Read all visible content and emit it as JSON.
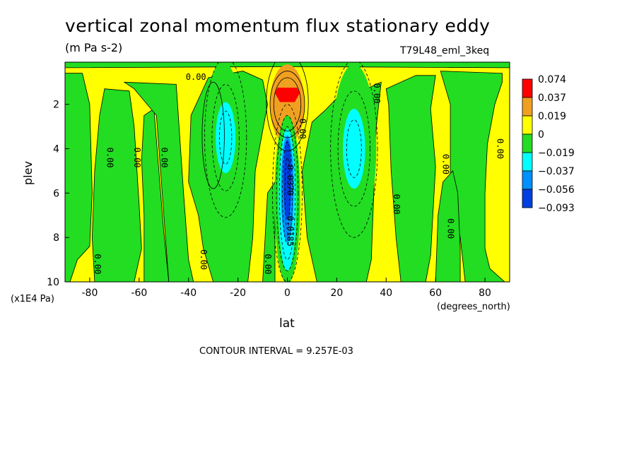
{
  "title": "vertical zonal momentum flux stationary eddy",
  "units": "(m Pa s-2)",
  "run_label": "T79L48_eml_3keq",
  "contour_interval_text": "CONTOUR INTERVAL = 9.257E-03",
  "chart_data": {
    "type": "heatmap",
    "title": "vertical zonal momentum flux stationary eddy",
    "subtitle": "(m Pa s-2)",
    "xlabel": "lat",
    "xunits": "(degrees_north)",
    "ylabel": "plev",
    "ymultiplier": "(x1E4 Pa)",
    "xlim": [
      -90,
      90
    ],
    "ylim": [
      10,
      0.1
    ],
    "x_ticks": [
      -80,
      -60,
      -40,
      -20,
      0,
      20,
      40,
      60,
      80
    ],
    "y_ticks": [
      2,
      4,
      6,
      8,
      10
    ],
    "colors": {
      "red": "#ff0000",
      "orange": "#f0a020",
      "yellow": "#ffff00",
      "green": "#22dd22",
      "cyan": "#00ffff",
      "lightblue": "#0090ff",
      "blue": "#0040e0"
    },
    "legend": {
      "placement": "right",
      "boundaries": [
        "0.074",
        "0.037",
        "0.019",
        "0",
        "−0.019",
        "−0.037",
        "−0.056",
        "−0.093"
      ],
      "fill_colors": [
        "#ff0000",
        "#f0a020",
        "#ffff00",
        "#22dd22",
        "#00ffff",
        "#0090ff",
        "#0040e0"
      ]
    },
    "contour_labels": [
      {
        "lat": -37,
        "p": 0.9,
        "text": "0.00"
      },
      {
        "lat": -73,
        "p": 4.4,
        "text": "0.00"
      },
      {
        "lat": -62,
        "p": 4.4,
        "text": "0.00"
      },
      {
        "lat": -51,
        "p": 4.4,
        "text": "0.00"
      },
      {
        "lat": -78,
        "p": 9.2,
        "text": "0.00"
      },
      {
        "lat": -35,
        "p": 9.0,
        "text": "0.00"
      },
      {
        "lat": -9,
        "p": 9.2,
        "text": "0.00"
      },
      {
        "lat": 35,
        "p": 1.5,
        "text": "0.00"
      },
      {
        "lat": 5,
        "p": 3.1,
        "text": "0.00"
      },
      {
        "lat": 63,
        "p": 4.7,
        "text": "0.00"
      },
      {
        "lat": 43,
        "p": 6.5,
        "text": "0.00"
      },
      {
        "lat": 65,
        "p": 7.6,
        "text": "0.00"
      },
      {
        "lat": 85,
        "p": 4.0,
        "text": "0.00"
      },
      {
        "lat": 0,
        "p": 5.3,
        "text": "-0.0370"
      },
      {
        "lat": 0,
        "p": 7.6,
        "text": "-0.0185"
      }
    ],
    "features": [
      {
        "name": "positive maximum",
        "lat": 0,
        "p": 1.6,
        "value_range": ">0.074"
      },
      {
        "name": "negative minimum",
        "lat": 0,
        "p": 5.5,
        "value_range": "<-0.056"
      },
      {
        "name": "southern negative lobe",
        "lat": -25,
        "p": 3.5,
        "value_range": "-0.037 to -0.019"
      },
      {
        "name": "northern negative lobe",
        "lat": 27,
        "p": 4.0,
        "value_range": "-0.037 to -0.019"
      }
    ]
  }
}
